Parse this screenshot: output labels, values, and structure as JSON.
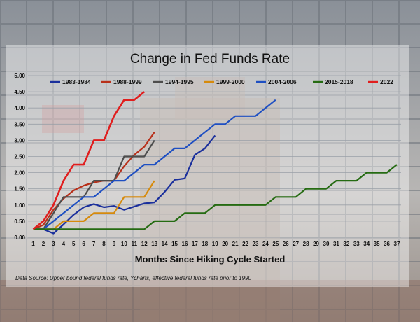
{
  "chart_data": {
    "type": "line",
    "title": "Change in Fed Funds Rate",
    "xlabel": "Months Since Hiking Cycle Started",
    "ylabel": "",
    "source_note": "Data Source: Upper bound federal funds rate, Ycharts, effective federal funds rate prior to 1990",
    "xlim": [
      1,
      37
    ],
    "ylim": [
      0,
      5
    ],
    "x_ticks": [
      1,
      2,
      3,
      4,
      5,
      6,
      7,
      8,
      9,
      10,
      11,
      12,
      13,
      14,
      15,
      16,
      17,
      18,
      19,
      20,
      21,
      22,
      23,
      24,
      25,
      26,
      27,
      28,
      29,
      30,
      31,
      32,
      33,
      34,
      35,
      36,
      37
    ],
    "y_ticks": [
      "0.00",
      "0.50",
      "1.00",
      "1.50",
      "2.00",
      "2.50",
      "3.00",
      "3.50",
      "4.00",
      "4.50",
      "5.00"
    ],
    "grid": true,
    "legend_position": "top",
    "series": [
      {
        "name": "1983-1984",
        "color": "#1a2f9c",
        "values": [
          0.25,
          0.25,
          0.12,
          0.4,
          0.7,
          0.93,
          1.03,
          0.93,
          0.97,
          0.85,
          0.95,
          1.05,
          1.08,
          1.4,
          1.78,
          1.82,
          2.55,
          2.75,
          3.15
        ]
      },
      {
        "name": "1988-1999",
        "color": "#b8301a",
        "values": [
          0.25,
          0.38,
          0.85,
          1.2,
          1.45,
          1.6,
          1.7,
          1.75,
          1.75,
          2.2,
          2.55,
          2.8,
          3.25
        ]
      },
      {
        "name": "1994-1995",
        "color": "#4d4d4d",
        "values": [
          0.25,
          0.25,
          0.75,
          1.25,
          1.25,
          1.25,
          1.75,
          1.75,
          1.75,
          2.5,
          2.5,
          2.5,
          3.0
        ]
      },
      {
        "name": "1999-2000",
        "color": "#d68a0c",
        "values": [
          0.25,
          0.25,
          0.25,
          0.5,
          0.5,
          0.5,
          0.75,
          0.75,
          0.75,
          1.25,
          1.25,
          1.25,
          1.75
        ]
      },
      {
        "name": "2004-2006",
        "color": "#1e4fc2",
        "values": [
          0.25,
          0.25,
          0.5,
          0.75,
          1.0,
          1.25,
          1.25,
          1.5,
          1.75,
          1.75,
          2.0,
          2.25,
          2.25,
          2.5,
          2.75,
          2.75,
          3.0,
          3.25,
          3.5,
          3.5,
          3.75,
          3.75,
          3.75,
          4.0,
          4.25
        ]
      },
      {
        "name": "2015-2018",
        "color": "#256b12",
        "values": [
          0.25,
          0.25,
          0.25,
          0.25,
          0.25,
          0.25,
          0.25,
          0.25,
          0.25,
          0.25,
          0.25,
          0.25,
          0.5,
          0.5,
          0.5,
          0.75,
          0.75,
          0.75,
          1.0,
          1.0,
          1.0,
          1.0,
          1.0,
          1.0,
          1.25,
          1.25,
          1.25,
          1.5,
          1.5,
          1.5,
          1.75,
          1.75,
          1.75,
          2.0,
          2.0,
          2.0,
          2.25
        ]
      },
      {
        "name": "2022",
        "color": "#e01e1e",
        "values": [
          0.25,
          0.5,
          1.0,
          1.75,
          2.25,
          2.25,
          3.0,
          3.0,
          3.75,
          4.25,
          4.25,
          4.5
        ]
      }
    ]
  }
}
